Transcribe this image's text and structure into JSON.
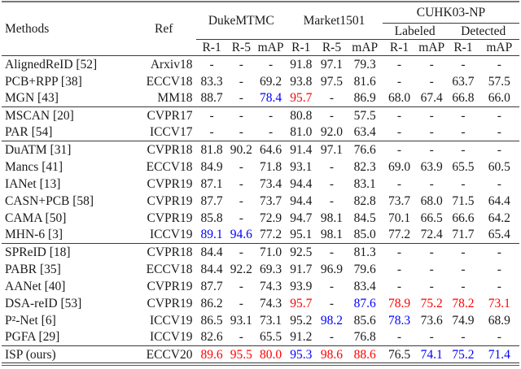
{
  "colors": {
    "highlight_red": "#ff0000",
    "highlight_blue": "#0000ff",
    "text": "#1a1a1a",
    "rule": "#3a3a3a"
  },
  "table": {
    "header": {
      "methods": "Methods",
      "ref": "Ref",
      "datasets": [
        {
          "label": "DukeMTMC",
          "cols": 3
        },
        {
          "label": "Market1501",
          "cols": 3
        },
        {
          "label": "CUHK03-NP",
          "cols": 4
        }
      ],
      "sub": {
        "labeled": "Labeled",
        "detected": "Detected"
      },
      "metric_cols": [
        "R-1",
        "R-5",
        "mAP",
        "R-1",
        "R-5",
        "mAP",
        "R-1",
        "mAP",
        "R-1",
        "mAP"
      ]
    },
    "groups": [
      {
        "rows": [
          {
            "method": "AlignedReID [52]",
            "ref": "Arxiv18",
            "cells": [
              "-",
              "-",
              "-",
              "91.8",
              "97.1",
              "79.3",
              "-",
              "-",
              "-",
              "-"
            ]
          },
          {
            "method": "PCB+RPP [38]",
            "ref": "ECCV18",
            "cells": [
              "83.3",
              "-",
              "69.2",
              "93.8",
              "97.5",
              "81.6",
              "-",
              "-",
              "63.7",
              "57.5"
            ]
          },
          {
            "method": "MGN [43]",
            "ref": "MM18",
            "cells": [
              "88.7",
              "-",
              {
                "v": "78.4",
                "c": "blue"
              },
              {
                "v": "95.7",
                "c": "red"
              },
              "-",
              "86.9",
              "68.0",
              "67.4",
              "66.8",
              "66.0"
            ]
          }
        ]
      },
      {
        "rows": [
          {
            "method": "MSCAN [20]",
            "ref": "CVPR17",
            "cells": [
              "-",
              "-",
              "-",
              "80.8",
              "-",
              "57.5",
              "-",
              "-",
              "-",
              "-"
            ]
          },
          {
            "method": "PAR [54]",
            "ref": "ICCV17",
            "cells": [
              "-",
              "-",
              "-",
              "81.0",
              "92.0",
              "63.4",
              "-",
              "-",
              "-",
              "-"
            ]
          }
        ]
      },
      {
        "rows": [
          {
            "method": "DuATM [31]",
            "ref": "CVPR18",
            "cells": [
              "81.8",
              "90.2",
              "64.6",
              "91.4",
              "97.1",
              "76.6",
              "-",
              "-",
              "-",
              "-"
            ]
          },
          {
            "method": "Mancs [41]",
            "ref": "ECCV18",
            "cells": [
              "84.9",
              "-",
              "71.8",
              "93.1",
              "-",
              "82.3",
              "69.0",
              "63.9",
              "65.5",
              "60.5"
            ]
          },
          {
            "method": "IANet [13]",
            "ref": "CVPR19",
            "cells": [
              "87.1",
              "-",
              "73.4",
              "94.4",
              "-",
              "83.1",
              "-",
              "-",
              "-",
              "-"
            ]
          },
          {
            "method": "CASN+PCB [58]",
            "ref": "CVPR19",
            "cells": [
              "87.7",
              "-",
              "73.7",
              "94.4",
              "-",
              "82.8",
              "73.7",
              "68.0",
              "71.5",
              "64.4"
            ]
          },
          {
            "method": "CAMA [50]",
            "ref": "CVPR19",
            "cells": [
              "85.8",
              "-",
              "72.9",
              "94.7",
              "98.1",
              "84.5",
              "70.1",
              "66.5",
              "66.6",
              "64.2"
            ]
          },
          {
            "method": "MHN-6 [3]",
            "ref": "ICCV19",
            "cells": [
              {
                "v": "89.1",
                "c": "blue"
              },
              {
                "v": "94.6",
                "c": "blue"
              },
              "77.2",
              "95.1",
              "98.1",
              "85.0",
              "77.2",
              "72.4",
              "71.7",
              "65.4"
            ]
          }
        ]
      },
      {
        "rows": [
          {
            "method": "SPReID [18]",
            "ref": "CVPR18",
            "cells": [
              "84.4",
              "-",
              "71.0",
              "92.5",
              "-",
              "81.3",
              "-",
              "-",
              "-",
              "-"
            ]
          },
          {
            "method": "PABR [35]",
            "ref": "ECCV18",
            "cells": [
              "84.4",
              "92.2",
              "69.3",
              "91.7",
              "96.9",
              "79.6",
              "-",
              "-",
              "-",
              "-"
            ]
          },
          {
            "method": "AANet [40]",
            "ref": "CVPR19",
            "cells": [
              "87.7",
              "-",
              "74.3",
              "93.9",
              "-",
              "83.4",
              "-",
              "-",
              "-",
              "-"
            ]
          },
          {
            "method": "DSA-reID [53]",
            "ref": "CVPR19",
            "cells": [
              "86.2",
              "-",
              "74.3",
              {
                "v": "95.7",
                "c": "red"
              },
              "-",
              {
                "v": "87.6",
                "c": "blue"
              },
              {
                "v": "78.9",
                "c": "red"
              },
              {
                "v": "75.2",
                "c": "red"
              },
              {
                "v": "78.2",
                "c": "red"
              },
              {
                "v": "73.1",
                "c": "red"
              }
            ]
          },
          {
            "method": "P²-Net [6]",
            "ref": "ICCV19",
            "cells": [
              "86.5",
              "93.1",
              "73.1",
              "95.2",
              {
                "v": "98.2",
                "c": "blue"
              },
              "85.6",
              {
                "v": "78.3",
                "c": "blue"
              },
              "73.6",
              "74.9",
              "68.9"
            ]
          },
          {
            "method": "PGFA [29]",
            "ref": "ICCV19",
            "cells": [
              "82.6",
              "-",
              "65.5",
              "91.2",
              "-",
              "76.8",
              "-",
              "-",
              "-",
              "-"
            ]
          }
        ]
      },
      {
        "rows": [
          {
            "method": "ISP (ours)",
            "ref": "ECCV20",
            "cells": [
              {
                "v": "89.6",
                "c": "red"
              },
              {
                "v": "95.5",
                "c": "red"
              },
              {
                "v": "80.0",
                "c": "red"
              },
              {
                "v": "95.3",
                "c": "blue"
              },
              {
                "v": "98.6",
                "c": "red"
              },
              {
                "v": "88.6",
                "c": "red"
              },
              "76.5",
              {
                "v": "74.1",
                "c": "blue"
              },
              {
                "v": "75.2",
                "c": "blue"
              },
              {
                "v": "71.4",
                "c": "blue"
              }
            ]
          }
        ]
      }
    ]
  }
}
